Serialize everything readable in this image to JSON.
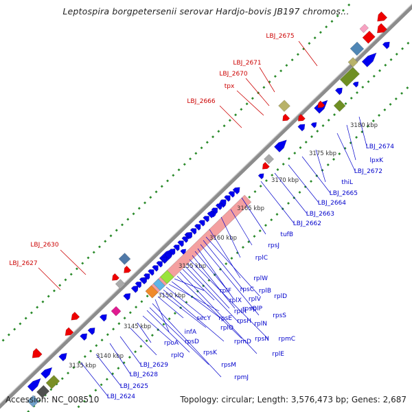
{
  "title": "Leptospira borgpetersenii serovar Hardjo-bovis JB197 chromos...",
  "footer": {
    "accession": "Accession: NC_008510",
    "topology": "Topology: circular; Length: 3,576,473 bp; Genes: 2,687"
  },
  "colors": {
    "backbone": "#8c8c8c",
    "forward_cds": "#0000ee",
    "reverse_cds": "#ee0000",
    "rrna_block": "#f4a0a0",
    "forward_label": "#0000cc",
    "reverse_label": "#cc0000",
    "dot_outer": "#2a8a2a",
    "dot_inner": "#2a8a2a"
  },
  "scale_labels": [
    "3135 kbp",
    "3140 kbp",
    "3145 kbp",
    "3150 kbp",
    "3155 kbp",
    "3160 kbp",
    "3165 kbp",
    "3170 kbp",
    "3175 kbp",
    "3180 kbp"
  ],
  "reverse_gene_labels": [
    "LBJ_2675",
    "LBJ_2671",
    "LBJ_2670",
    "tpx",
    "LBJ_2666",
    "LBJ_2630",
    "LBJ_2627"
  ],
  "forward_gene_labels": [
    "LBJ_2674",
    "lpxK",
    "LBJ_2672",
    "thiL",
    "LBJ_2665",
    "LBJ_2664",
    "LBJ_2663",
    "LBJ_2662",
    "tufB",
    "rpsJ",
    "rplC",
    "rplW",
    "rplD",
    "rplB",
    "rpsS",
    "rplV",
    "rpsC",
    "rplP",
    "rpmC",
    "rpsQ",
    "rplN",
    "rplX",
    "rplE",
    "rpsN",
    "rplF",
    "rpsH",
    "rplR",
    "rpsE",
    "rpmD",
    "rplO",
    "secY",
    "infA",
    "rpmJ",
    "rpsM",
    "rpsK",
    "rpsD",
    "rpoA",
    "rplQ",
    "LBJ_2629",
    "LBJ_2628",
    "LBJ_2625",
    "LBJ_2624"
  ]
}
